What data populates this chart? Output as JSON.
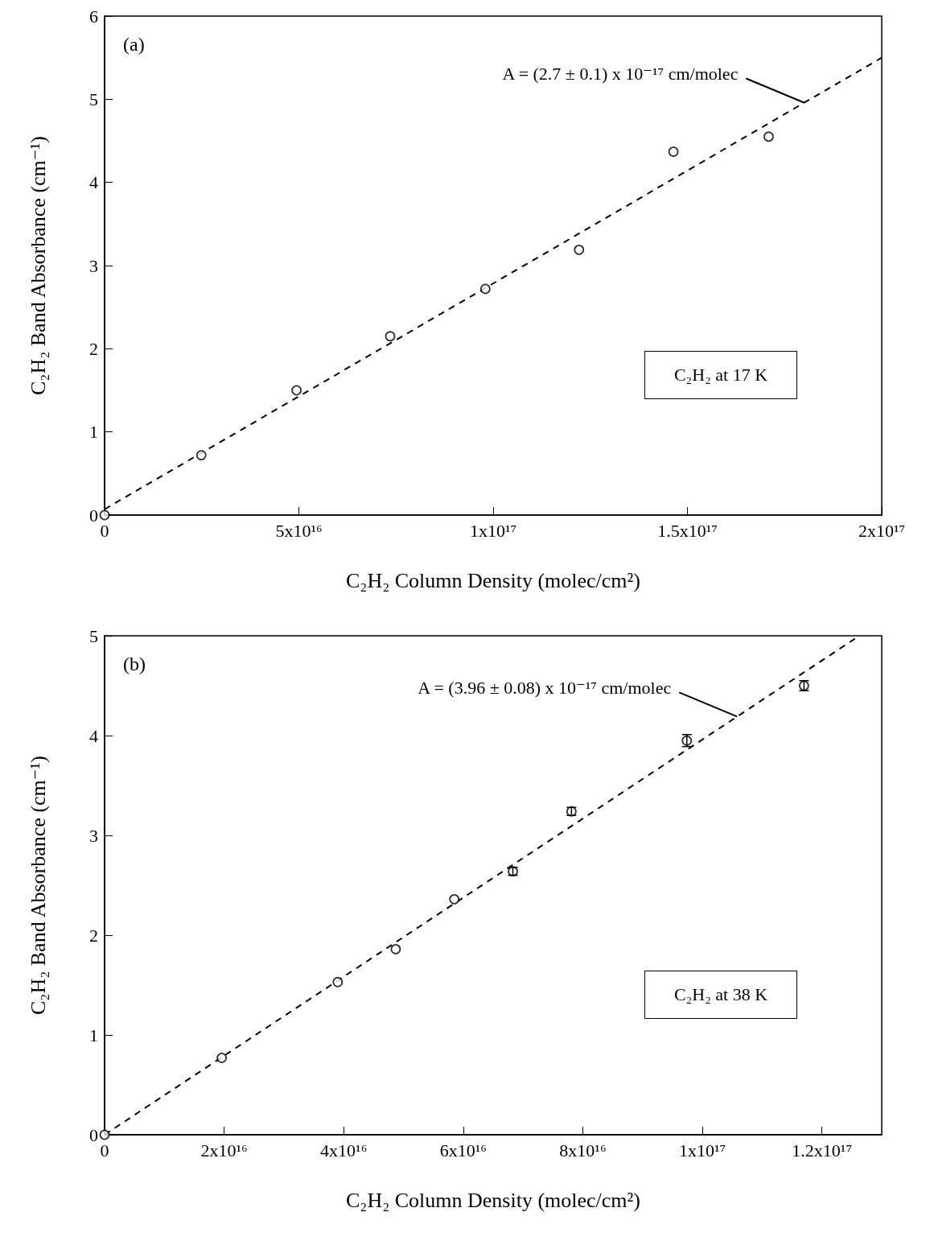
{
  "chart_data": [
    {
      "type": "scatter",
      "title": "(a)",
      "xlabel": "C₂H₂ Column Density (molec/cm²)",
      "ylabel": "C₂H₂ Band Absorbance (cm⁻¹)",
      "xlim": [
        0,
        2e+17
      ],
      "xticks": [
        0,
        {
          "value": 5e+16,
          "label": "5x10¹⁶"
        },
        {
          "value": 1e+17,
          "label": "1x10¹⁷"
        },
        {
          "value": 1.5e+17,
          "label": "1.5x10¹⁷"
        },
        {
          "value": 2e+17,
          "label": "2x10¹⁷"
        }
      ],
      "ylim": [
        0,
        6
      ],
      "yticks": [
        0,
        1,
        2,
        3,
        4,
        5,
        6
      ],
      "grid": false,
      "annotations": [
        {
          "text": "A = (2.7 ± 0.1) x 10⁻¹⁷ cm/molec",
          "x": 1.8e+17,
          "y": 4.96
        },
        "C₂H₂ at 17 K"
      ],
      "series": [
        {
          "type": "scatter",
          "color": "#000000",
          "marker": "circle",
          "x": [
            0,
            2.49e+16,
            4.94e+16,
            7.35e+16,
            9.8e+16,
            1.221e+17,
            1.464e+17,
            1.709e+17
          ],
          "values": [
            0,
            0.72,
            1.5,
            2.15,
            2.72,
            3.19,
            4.37,
            4.55
          ]
        },
        {
          "type": "line",
          "color": "#000000",
          "marker": "none",
          "line_style": "dashed",
          "x": [
            0,
            2e+17
          ],
          "values": [
            0.07,
            5.5
          ]
        }
      ]
    },
    {
      "type": "scatter",
      "title": "(b)",
      "xlabel": "C₂H₂ Column Density (molec/cm²)",
      "ylabel": "C₂H₂ Band Absorbance (cm⁻¹)",
      "xlim": [
        0,
        1.3e+17
      ],
      "xticks": [
        0,
        {
          "value": 2e+16,
          "label": "2x10¹⁶"
        },
        {
          "value": 4e+16,
          "label": "4x10¹⁶"
        },
        {
          "value": 6e+16,
          "label": "6x10¹⁶"
        },
        {
          "value": 8e+16,
          "label": "8x10¹⁶"
        },
        {
          "value": 1e+17,
          "label": "1x10¹⁷"
        },
        {
          "value": 1.2e+17,
          "label": "1.2x10¹⁷"
        }
      ],
      "ylim": [
        0,
        5
      ],
      "yticks": [
        0,
        1,
        2,
        3,
        4,
        5
      ],
      "grid": false,
      "annotations": [
        {
          "text": "A = (3.96 ± 0.08) x 10⁻¹⁷ cm/molec",
          "x": 1.058e+17,
          "y": 4.19
        },
        "C₂H₂ at 38 K"
      ],
      "series": [
        {
          "type": "scatter",
          "color": "#000000",
          "marker": "circle",
          "x": [
            0,
            1.96e+16,
            3.9e+16,
            4.87e+16,
            5.85e+16,
            6.83e+16,
            7.81e+16,
            9.74e+16,
            1.17e+17
          ],
          "values": [
            0,
            0.77,
            1.53,
            1.86,
            2.36,
            2.64,
            3.24,
            3.95,
            4.5
          ],
          "errors": [
            null,
            null,
            null,
            null,
            null,
            0.04,
            0.04,
            0.06,
            0.05
          ]
        },
        {
          "type": "line",
          "color": "#000000",
          "marker": "none",
          "line_style": "dashed",
          "x": [
            0,
            1.26e+17
          ],
          "values": [
            0,
            4.99
          ]
        }
      ]
    }
  ]
}
